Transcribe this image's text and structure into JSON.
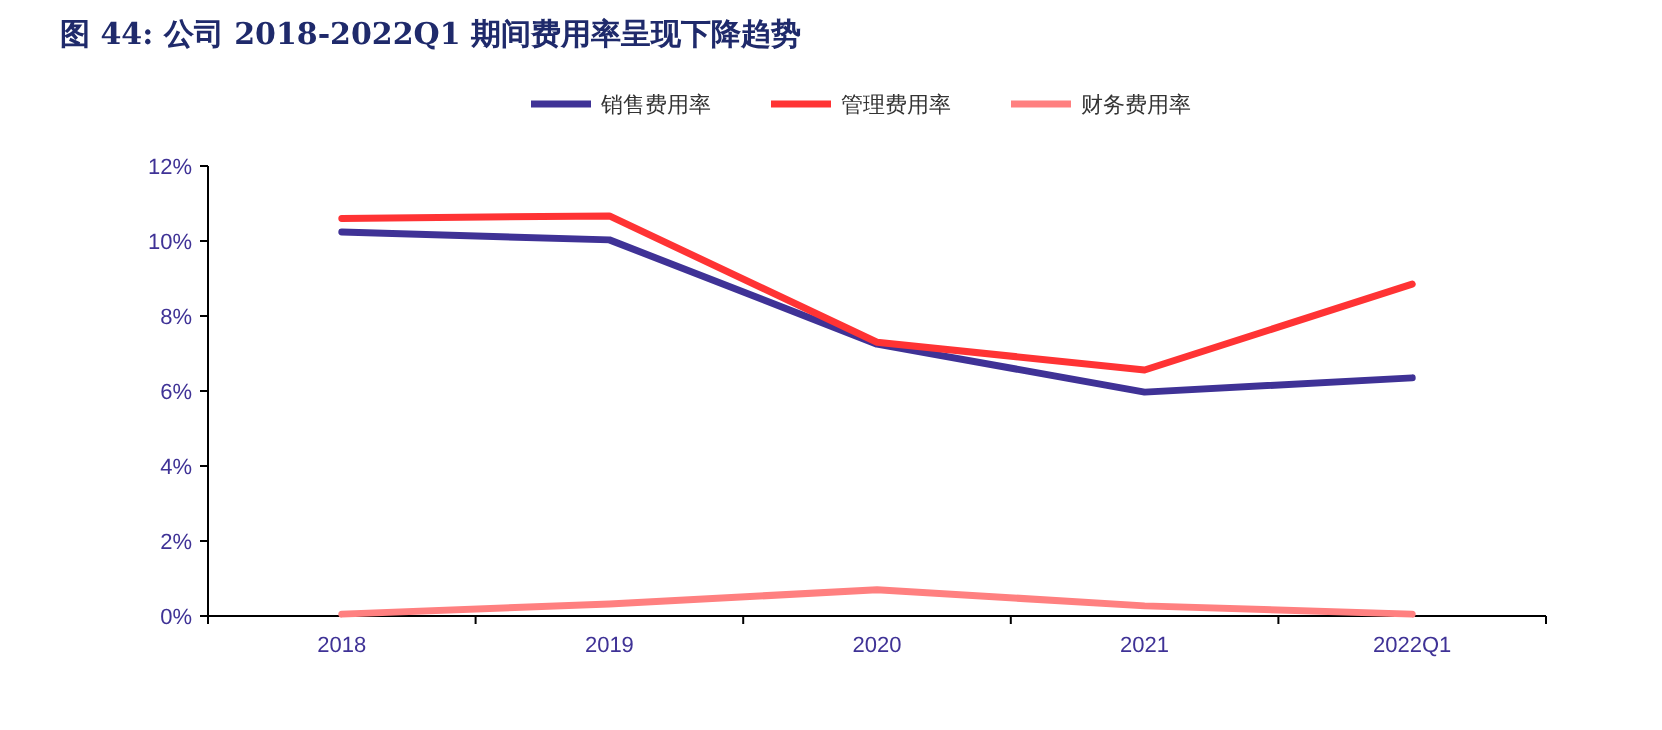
{
  "chart_data": {
    "type": "line",
    "title": "图 44:  公司 2018-2022Q1 期间费用率呈现下降趋势",
    "categories": [
      "2018",
      "2019",
      "2020",
      "2021",
      "2022Q1"
    ],
    "series": [
      {
        "name": "销售费用率",
        "color": "#3f3296",
        "values": [
          10.24,
          10.03,
          7.25,
          5.97,
          6.35
        ]
      },
      {
        "name": "管理费用率",
        "color": "#ff3334",
        "values": [
          10.6,
          10.67,
          7.3,
          6.56,
          8.85
        ]
      },
      {
        "name": "财务费用率",
        "color": "#ff8080",
        "values": [
          0.05,
          0.32,
          0.7,
          0.27,
          0.05
        ]
      }
    ],
    "ylim": [
      0,
      12
    ],
    "yticks": [
      {
        "value": 0,
        "label": "0%"
      },
      {
        "value": 2,
        "label": "2%"
      },
      {
        "value": 4,
        "label": "4%"
      },
      {
        "value": 6,
        "label": "6%"
      },
      {
        "value": 8,
        "label": "8%"
      },
      {
        "value": 10,
        "label": "10%"
      },
      {
        "value": 12,
        "label": "12%"
      }
    ],
    "legend": "top",
    "grid": false,
    "marker": "none",
    "line_style": "solid"
  }
}
